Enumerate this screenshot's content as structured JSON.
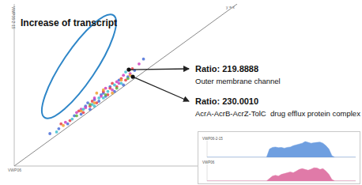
{
  "chart_data": [
    {
      "type": "scatter",
      "title": "Increase of transcript",
      "x_label": "VWP06",
      "y_label": "VWP06-2-15",
      "diagonal_label": "y = x",
      "xlim": [
        0,
        10
      ],
      "ylim": [
        0,
        10
      ],
      "tick_labels": false,
      "grid": false,
      "series": [
        {
          "color": "#4a6fd8",
          "x": [
            1.6,
            2.0,
            2.4,
            2.7,
            3.0,
            3.2,
            3.4,
            3.6,
            3.8,
            4.0,
            4.1,
            4.3,
            4.5,
            4.7,
            4.9,
            5.1,
            5.4,
            5.8,
            3.3,
            3.9
          ],
          "values": [
            2.0,
            2.3,
            2.6,
            3.1,
            3.2,
            3.7,
            3.5,
            4.1,
            4.0,
            4.5,
            4.3,
            4.9,
            4.6,
            5.3,
            5.0,
            5.5,
            5.9,
            6.6,
            3.9,
            4.4
          ]
        },
        {
          "color": "#e8404a",
          "x": [
            2.1,
            2.5,
            2.9,
            3.1,
            3.5,
            3.7,
            4.0,
            4.2,
            4.4,
            4.6,
            4.8,
            5.0,
            5.3,
            3.4,
            4.3
          ],
          "values": [
            2.6,
            2.8,
            3.4,
            3.3,
            4.0,
            3.9,
            4.6,
            4.4,
            5.1,
            4.9,
            5.4,
            5.3,
            6.0,
            3.7,
            4.8
          ]
        },
        {
          "color": "#d040c0",
          "x": [
            2.3,
            2.8,
            3.2,
            3.6,
            3.9,
            4.1,
            4.4,
            4.6,
            4.9,
            5.2,
            5.6,
            3.0,
            4.7
          ],
          "values": [
            2.7,
            3.3,
            3.6,
            4.2,
            4.3,
            4.8,
            4.7,
            5.2,
            5.6,
            5.7,
            6.3,
            3.5,
            5.1
          ]
        },
        {
          "color": "#40c0d0",
          "x": [
            1.9,
            2.6,
            3.1,
            3.5,
            3.8,
            4.2,
            4.5,
            4.8,
            5.0,
            3.6,
            4.0
          ],
          "values": [
            2.1,
            2.9,
            3.5,
            3.8,
            4.2,
            4.6,
            5.0,
            5.1,
            5.8,
            3.7,
            4.2
          ]
        },
        {
          "color": "#f0a030",
          "x": [
            2.2,
            3.0,
            3.6,
            4.0,
            4.4,
            4.8,
            5.2,
            3.7
          ],
          "values": [
            2.5,
            3.4,
            3.9,
            4.7,
            4.5,
            5.3,
            5.6,
            4.5
          ]
        },
        {
          "color": "#60b040",
          "x": [
            2.8,
            3.4,
            4.1,
            4.6,
            5.1
          ],
          "values": [
            3.1,
            3.8,
            4.4,
            4.8,
            5.4
          ]
        }
      ],
      "annotations": [
        {
          "x": 5.14,
          "y": 5.95,
          "label": "Ratio: 219.8888",
          "text": "Outer membrane channel"
        },
        {
          "x": 5.32,
          "y": 5.51,
          "label": "Ratio: 230.0010",
          "text": "AcrA-AcrB-AcrZ-TolC  drug efflux protein complex"
        }
      ]
    },
    {
      "type": "area",
      "title": "VWP06-2-15",
      "xlim": [
        0,
        100
      ],
      "ylim": [
        0,
        1
      ],
      "tick_labels": false,
      "x": [
        0,
        40,
        42,
        44,
        46,
        48,
        50,
        52,
        54,
        56,
        58,
        60,
        62,
        64,
        66,
        68,
        70,
        72,
        74,
        76,
        78,
        80,
        82,
        84,
        86,
        100
      ],
      "series": [
        {
          "color": "#6f9fe0",
          "values": [
            0,
            0,
            0.5,
            0.6,
            0.62,
            0.58,
            0.6,
            0.55,
            0.6,
            0.62,
            0.7,
            0.75,
            0.8,
            0.85,
            0.95,
            0.9,
            0.85,
            0.88,
            0.9,
            0.92,
            0.85,
            0.7,
            0.5,
            0.1,
            0,
            0
          ]
        }
      ]
    },
    {
      "type": "area",
      "title": "VWP06",
      "xlim": [
        0,
        100
      ],
      "ylim": [
        0,
        1
      ],
      "tick_labels": false,
      "x": [
        0,
        40,
        42,
        44,
        46,
        48,
        50,
        52,
        54,
        56,
        58,
        60,
        62,
        64,
        66,
        68,
        70,
        72,
        74,
        76,
        78,
        80,
        82,
        84,
        86,
        100
      ],
      "series": [
        {
          "color": "#e07aa8",
          "values": [
            0,
            0,
            0.15,
            0.3,
            0.35,
            0.3,
            0.4,
            0.45,
            0.5,
            0.55,
            0.5,
            0.6,
            0.7,
            0.75,
            0.7,
            0.65,
            0.72,
            0.8,
            0.78,
            0.7,
            0.75,
            0.6,
            0.4,
            0.1,
            0,
            0
          ]
        }
      ]
    }
  ]
}
